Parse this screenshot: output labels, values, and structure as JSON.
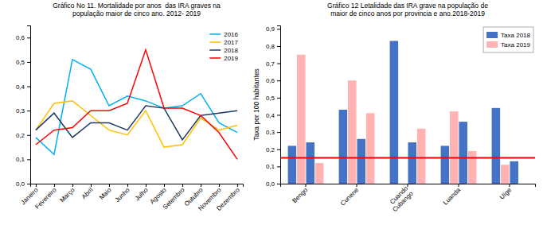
{
  "chart_data": [
    {
      "type": "line",
      "title": "Gráfico No 11. Mortalidade por anos  das IRA graves na\npopulação maior de cinco ano. 2012- 2019",
      "categories": [
        "Janeiro",
        "Fevereiro",
        "Março",
        "Abril",
        "Maio",
        "Junho",
        "Julho",
        "Agosto",
        "Setembro",
        "Outubro",
        "Novembro",
        "Dezembro"
      ],
      "series": [
        {
          "name": "2016",
          "color": "#00B0F0",
          "values": [
            0.19,
            0.12,
            0.51,
            0.47,
            0.32,
            0.36,
            0.34,
            0.31,
            0.32,
            0.37,
            0.25,
            0.21
          ]
        },
        {
          "name": "2017",
          "color": "#FFC000",
          "values": [
            0.22,
            0.33,
            0.34,
            0.28,
            0.22,
            0.2,
            0.3,
            0.15,
            0.16,
            0.27,
            0.22,
            0.24
          ]
        },
        {
          "name": "2018",
          "color": "#1F3864",
          "values": [
            0.22,
            0.29,
            0.19,
            0.25,
            0.25,
            0.22,
            0.32,
            0.31,
            0.18,
            0.28,
            0.29,
            0.3
          ]
        },
        {
          "name": "2019",
          "color": "#FF0000",
          "values": [
            0.16,
            0.22,
            0.23,
            0.3,
            0.3,
            0.33,
            0.55,
            0.31,
            0.31,
            0.28,
            0.21,
            0.1
          ]
        }
      ],
      "ylim": [
        0.0,
        0.65
      ],
      "yticks": [
        {
          "value": 0.0,
          "label": "0,0"
        },
        {
          "value": 0.1,
          "label": "0,1"
        },
        {
          "value": 0.2,
          "label": "0,2"
        },
        {
          "value": 0.3,
          "label": "0,3"
        },
        {
          "value": 0.4,
          "label": "0,4"
        },
        {
          "value": 0.5,
          "label": "0,5"
        },
        {
          "value": 0.6,
          "label": "0,6"
        }
      ],
      "legend": "upper right"
    },
    {
      "type": "bar",
      "title": "Gráfico 12 Letalidade das IRA grave na população de\nmaior de cinco anos por provincia e ano.2018-2019",
      "ylabel": "Taxa por 100 habitantes",
      "categories": [
        "Bengo",
        "Cunene",
        "Cuando\nCubango",
        "Luanda",
        "Uíge"
      ],
      "series": [
        {
          "name": "Taxa 2018",
          "color": "#4472C4",
          "values": [
            0.22,
            0.43,
            0.83,
            0.22,
            0.44
          ]
        },
        {
          "name": "Taxa 2019",
          "color": "#FFB3B3",
          "values": [
            0.75,
            0.6,
            0.0,
            0.42,
            0.11
          ]
        },
        {
          "color": "#4472C4",
          "values": [
            0.24,
            0.26,
            0.24,
            0.36,
            0.13
          ]
        },
        {
          "color": "#FFB3B3",
          "values": [
            0.12,
            0.41,
            0.32,
            0.19,
            0.0
          ]
        }
      ],
      "reference_line": {
        "value": 0.15,
        "color": "#FF0000"
      },
      "ylim": [
        0.0,
        0.92
      ],
      "yticks": [
        {
          "value": 0.0,
          "label": "0,0"
        },
        {
          "value": 0.1,
          "label": "0,1"
        },
        {
          "value": 0.2,
          "label": "0,2"
        },
        {
          "value": 0.3,
          "label": "0,3"
        },
        {
          "value": 0.4,
          "label": "0,4"
        },
        {
          "value": 0.5,
          "label": "0,5"
        },
        {
          "value": 0.6,
          "label": "0,6"
        },
        {
          "value": 0.7,
          "label": "0,7"
        },
        {
          "value": 0.8,
          "label": "0,8"
        },
        {
          "value": 0.9,
          "label": "0,9"
        }
      ],
      "legend": "upper right"
    }
  ]
}
